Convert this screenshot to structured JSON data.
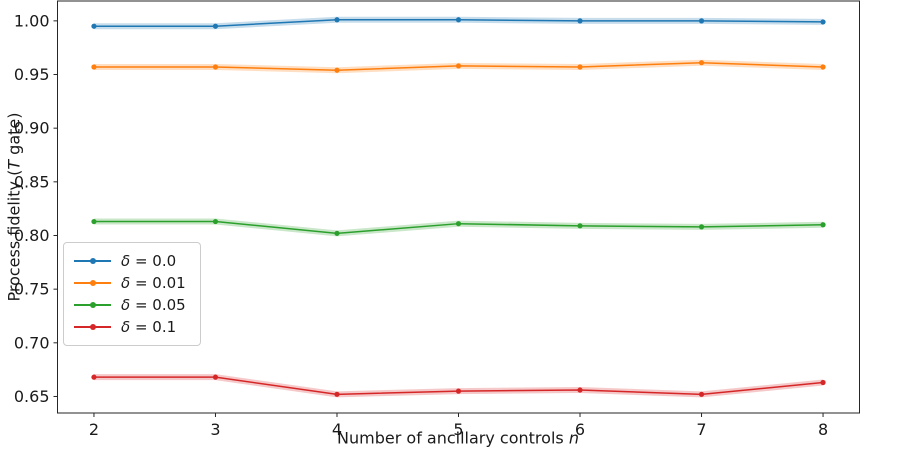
{
  "chart_data": {
    "type": "line",
    "title": "",
    "xlabel": "Number of ancillary controls n",
    "ylabel": "Process fidelity (T gate)",
    "xlabel_parts": {
      "text": "Number of ancillary controls ",
      "italic": "n"
    },
    "ylabel_parts": {
      "pre": "Process fidelity (",
      "italic": "T",
      "post": " gate)"
    },
    "x": [
      2,
      3,
      4,
      5,
      6,
      7,
      8
    ],
    "series": [
      {
        "name": "δ = 0.0",
        "label_symbol": "δ",
        "label_rest": " = 0.0",
        "color": "#1f77b4",
        "values": [
          0.995,
          0.995,
          1.001,
          1.001,
          1.0,
          1.0,
          0.999
        ]
      },
      {
        "name": "δ = 0.01",
        "label_symbol": "δ",
        "label_rest": " = 0.01",
        "color": "#ff7f0e",
        "values": [
          0.957,
          0.957,
          0.954,
          0.958,
          0.957,
          0.961,
          0.957
        ]
      },
      {
        "name": "δ = 0.05",
        "label_symbol": "δ",
        "label_rest": " = 0.05",
        "color": "#2ca02c",
        "values": [
          0.813,
          0.813,
          0.802,
          0.811,
          0.809,
          0.808,
          0.81
        ]
      },
      {
        "name": "δ = 0.1",
        "label_symbol": "δ",
        "label_rest": " = 0.1",
        "color": "#d62728",
        "values": [
          0.668,
          0.668,
          0.652,
          0.655,
          0.656,
          0.652,
          0.663
        ]
      }
    ],
    "xticks": [
      2,
      3,
      4,
      5,
      6,
      7,
      8
    ],
    "xtick_labels": [
      "2",
      "3",
      "4",
      "5",
      "6",
      "7",
      "8"
    ],
    "yticks": [
      0.65,
      0.7,
      0.75,
      0.8,
      0.85,
      0.9,
      0.95,
      1.0
    ],
    "ytick_labels": [
      "0.65",
      "0.70",
      "0.75",
      "0.80",
      "0.85",
      "0.90",
      "0.95",
      "1.00"
    ],
    "xlim": [
      1.7,
      8.3
    ],
    "ylim": [
      0.6346,
      1.0185
    ],
    "grid": false,
    "legend_position": "center-left",
    "marker": "point",
    "band_halfwidth": 0.0028,
    "axis_color": "#262626",
    "legend_border_color": "#cccccc"
  }
}
